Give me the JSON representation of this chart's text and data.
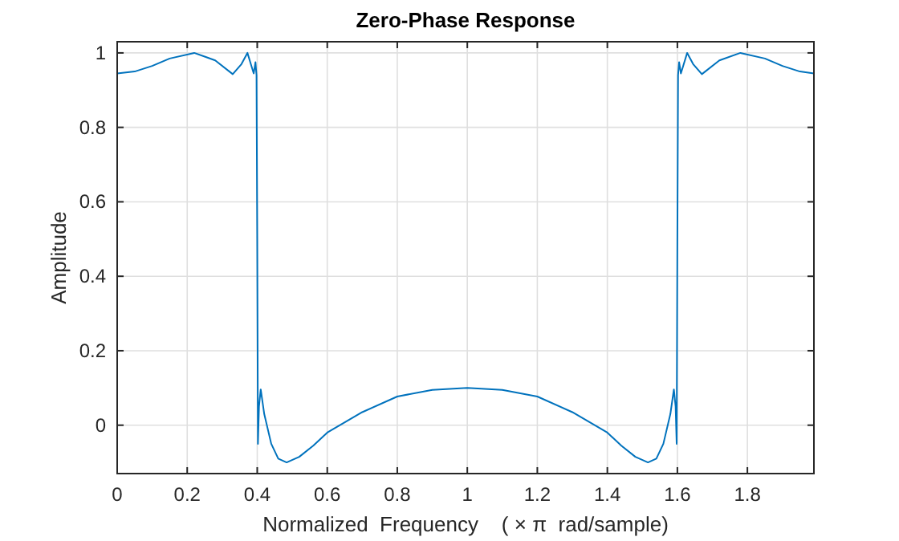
{
  "chart_data": {
    "type": "line",
    "title": "Zero-Phase Response",
    "xlabel": "Normalized  Frequency    ( × π  rad/sample)",
    "ylabel": "Amplitude",
    "xlim": [
      0,
      1.99
    ],
    "ylim": [
      -0.13,
      1.03
    ],
    "xticks": [
      0,
      0.2,
      0.4,
      0.6,
      0.8,
      1,
      1.2,
      1.4,
      1.6,
      1.8
    ],
    "yticks": [
      0,
      0.2,
      0.4,
      0.6,
      0.8,
      1
    ],
    "grid": true,
    "series": [
      {
        "color": "#0072bd",
        "x": [
          0,
          0.05,
          0.1,
          0.15,
          0.22,
          0.28,
          0.33,
          0.355,
          0.372,
          0.385,
          0.39,
          0.395,
          0.398,
          0.4,
          0.402,
          0.405,
          0.41,
          0.42,
          0.44,
          0.46,
          0.484,
          0.52,
          0.56,
          0.6,
          0.7,
          0.8,
          0.9,
          1,
          1.1,
          1.2,
          1.3,
          1.4,
          1.44,
          1.48,
          1.516,
          1.54,
          1.56,
          1.58,
          1.59,
          1.595,
          1.598,
          1.6,
          1.602,
          1.605,
          1.61,
          1.615,
          1.628,
          1.645,
          1.67,
          1.72,
          1.78,
          1.85,
          1.9,
          1.95,
          1.99
        ],
        "values": [
          0.945,
          0.95,
          0.965,
          0.985,
          1,
          0.98,
          0.943,
          0.97,
          1,
          0.96,
          0.945,
          0.975,
          0.94,
          0.5,
          -0.05,
          0.05,
          0.096,
          0.03,
          -0.05,
          -0.09,
          -0.1,
          -0.085,
          -0.055,
          -0.02,
          0.035,
          0.077,
          0.095,
          0.1,
          0.095,
          0.077,
          0.035,
          -0.02,
          -0.055,
          -0.085,
          -0.1,
          -0.09,
          -0.05,
          0.03,
          0.096,
          0.05,
          -0.05,
          0.5,
          0.94,
          0.975,
          0.945,
          0.96,
          1,
          0.97,
          0.943,
          0.98,
          1,
          0.985,
          0.965,
          0.95,
          0.945
        ]
      }
    ]
  }
}
